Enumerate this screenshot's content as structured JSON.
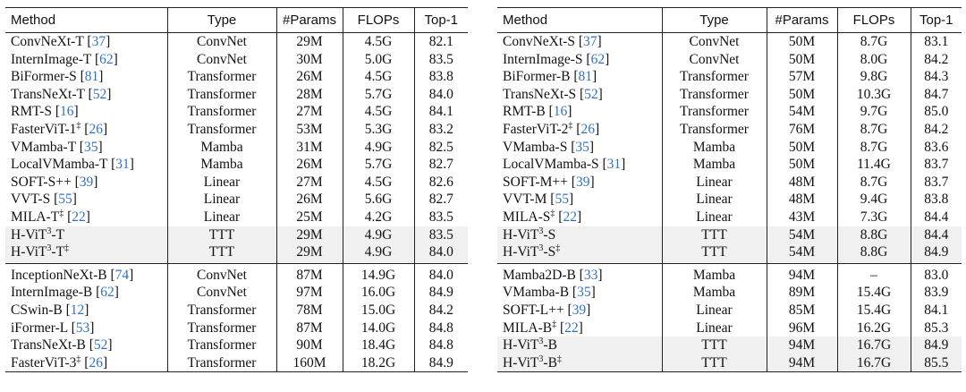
{
  "columns": [
    "Method",
    "Type",
    "#Params",
    "FLOPs",
    "Top-1"
  ],
  "tables": [
    {
      "sections": [
        [
          {
            "name": "ConvNeXt-T",
            "cite": "37",
            "type": "ConvNet",
            "params": "29M",
            "flops": "4.5G",
            "top1": "82.1"
          },
          {
            "name": "InternImage-T",
            "cite": "62",
            "type": "ConvNet",
            "params": "30M",
            "flops": "5.0G",
            "top1": "83.5"
          },
          {
            "name": "BiFormer-S",
            "cite": "81",
            "type": "Transformer",
            "params": "26M",
            "flops": "4.5G",
            "top1": "83.8"
          },
          {
            "name": "TransNeXt-T",
            "cite": "52",
            "type": "Transformer",
            "params": "28M",
            "flops": "5.7G",
            "top1": "84.0"
          },
          {
            "name": "RMT-S",
            "cite": "16",
            "type": "Transformer",
            "params": "27M",
            "flops": "4.5G",
            "top1": "84.1"
          },
          {
            "name": "FasterViT-1",
            "sup": "‡",
            "cite": "26",
            "type": "Transformer",
            "params": "53M",
            "flops": "5.3G",
            "top1": "83.2"
          },
          {
            "name": "VMamba-T",
            "cite": "35",
            "type": "Mamba",
            "params": "31M",
            "flops": "4.9G",
            "top1": "82.5"
          },
          {
            "name": "LocalVMamba-T",
            "cite": "31",
            "type": "Mamba",
            "params": "26M",
            "flops": "5.7G",
            "top1": "82.7"
          },
          {
            "name": "SOFT-S++",
            "cite": "39",
            "type": "Linear",
            "params": "27M",
            "flops": "4.5G",
            "top1": "82.6"
          },
          {
            "name": "VVT-S",
            "cite": "55",
            "type": "Linear",
            "params": "26M",
            "flops": "5.6G",
            "top1": "82.7"
          },
          {
            "name": "MILA-T",
            "sup": "‡",
            "cite": "22",
            "type": "Linear",
            "params": "25M",
            "flops": "4.2G",
            "top1": "83.5"
          },
          {
            "name": "H-ViT",
            "supmid": "3",
            "suffix": "-T",
            "type": "TTT",
            "params": "29M",
            "flops": "4.9G",
            "top1": "83.5",
            "hl": true
          },
          {
            "name": "H-ViT",
            "supmid": "3",
            "suffix": "-T",
            "sup": "‡",
            "type": "TTT",
            "params": "29M",
            "flops": "4.9G",
            "top1": "84.0",
            "hl": true
          }
        ],
        [
          {
            "name": "InceptionNeXt-B",
            "cite": "74",
            "type": "ConvNet",
            "params": "87M",
            "flops": "14.9G",
            "top1": "84.0"
          },
          {
            "name": "InternImage-B",
            "cite": "62",
            "type": "ConvNet",
            "params": "97M",
            "flops": "16.0G",
            "top1": "84.9"
          },
          {
            "name": "CSwin-B",
            "cite": "12",
            "type": "Transformer",
            "params": "78M",
            "flops": "15.0G",
            "top1": "84.2"
          },
          {
            "name": "iFormer-L",
            "cite": "53",
            "type": "Transformer",
            "params": "87M",
            "flops": "14.0G",
            "top1": "84.8"
          },
          {
            "name": "TransNeXt-B",
            "cite": "52",
            "type": "Transformer",
            "params": "90M",
            "flops": "18.4G",
            "top1": "84.8"
          },
          {
            "name": "FasterViT-3",
            "sup": "‡",
            "cite": "26",
            "type": "Transformer",
            "params": "160M",
            "flops": "18.2G",
            "top1": "84.9"
          }
        ]
      ]
    },
    {
      "sections": [
        [
          {
            "name": "ConvNeXt-S",
            "cite": "37",
            "type": "ConvNet",
            "params": "50M",
            "flops": "8.7G",
            "top1": "83.1"
          },
          {
            "name": "InternImage-S",
            "cite": "62",
            "type": "ConvNet",
            "params": "50M",
            "flops": "8.0G",
            "top1": "84.2"
          },
          {
            "name": "BiFormer-B",
            "cite": "81",
            "type": "Transformer",
            "params": "57M",
            "flops": "9.8G",
            "top1": "84.3"
          },
          {
            "name": "TransNeXt-S",
            "cite": "52",
            "type": "Transformer",
            "params": "50M",
            "flops": "10.3G",
            "top1": "84.7"
          },
          {
            "name": "RMT-B",
            "cite": "16",
            "type": "Transformer",
            "params": "54M",
            "flops": "9.7G",
            "top1": "85.0"
          },
          {
            "name": "FasterViT-2",
            "sup": "‡",
            "cite": "26",
            "type": "Transformer",
            "params": "76M",
            "flops": "8.7G",
            "top1": "84.2"
          },
          {
            "name": "VMamba-S",
            "cite": "35",
            "type": "Mamba",
            "params": "50M",
            "flops": "8.7G",
            "top1": "83.6"
          },
          {
            "name": "LocalVMamba-S",
            "cite": "31",
            "type": "Mamba",
            "params": "50M",
            "flops": "11.4G",
            "top1": "83.7"
          },
          {
            "name": "SOFT-M++",
            "cite": "39",
            "type": "Linear",
            "params": "48M",
            "flops": "8.7G",
            "top1": "83.7"
          },
          {
            "name": "VVT-M",
            "cite": "55",
            "type": "Linear",
            "params": "48M",
            "flops": "9.4G",
            "top1": "83.8"
          },
          {
            "name": "MILA-S",
            "sup": "‡",
            "cite": "22",
            "type": "Linear",
            "params": "43M",
            "flops": "7.3G",
            "top1": "84.4"
          },
          {
            "name": "H-ViT",
            "supmid": "3",
            "suffix": "-S",
            "type": "TTT",
            "params": "54M",
            "flops": "8.8G",
            "top1": "84.4",
            "hl": true
          },
          {
            "name": "H-ViT",
            "supmid": "3",
            "suffix": "-S",
            "sup": "‡",
            "type": "TTT",
            "params": "54M",
            "flops": "8.8G",
            "top1": "84.9",
            "hl": true
          }
        ],
        [
          {
            "name": "Mamba2D-B",
            "cite": "33",
            "type": "Mamba",
            "params": "94M",
            "flops": "–",
            "top1": "83.0"
          },
          {
            "name": "VMamba-B",
            "cite": "35",
            "type": "Mamba",
            "params": "89M",
            "flops": "15.4G",
            "top1": "83.9"
          },
          {
            "name": "SOFT-L++",
            "cite": "39",
            "type": "Linear",
            "params": "85M",
            "flops": "15.4G",
            "top1": "84.1"
          },
          {
            "name": "MILA-B",
            "sup": "‡",
            "cite": "22",
            "type": "Linear",
            "params": "96M",
            "flops": "16.2G",
            "top1": "85.3"
          },
          {
            "name": "H-ViT",
            "supmid": "3",
            "suffix": "-B",
            "type": "TTT",
            "params": "94M",
            "flops": "16.7G",
            "top1": "84.9",
            "hl": true
          },
          {
            "name": "H-ViT",
            "supmid": "3",
            "suffix": "-B",
            "sup": "‡",
            "type": "TTT",
            "params": "94M",
            "flops": "16.7G",
            "top1": "85.5",
            "hl": true
          }
        ]
      ]
    }
  ]
}
